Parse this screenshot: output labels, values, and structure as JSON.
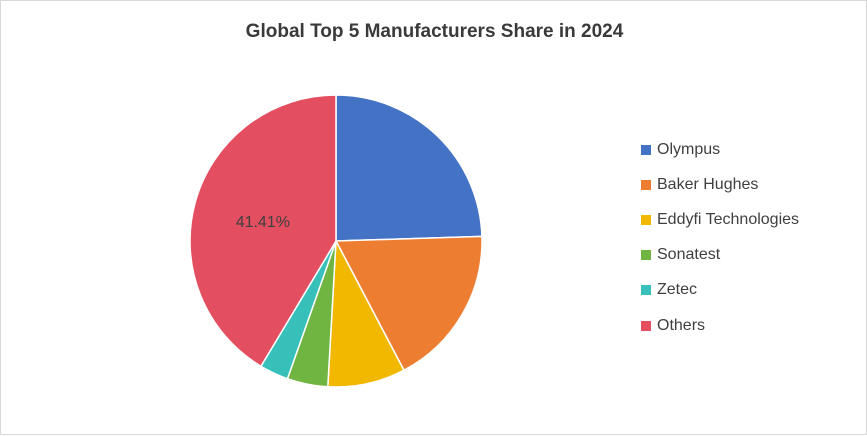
{
  "chart_data": {
    "type": "pie",
    "title": "Global Top 5 Manufacturers Share in 2024",
    "categories": [
      "Olympus",
      "Baker Hughes",
      "Eddyfi Technologies",
      "Sonatest",
      "Zetec",
      "Others"
    ],
    "values": [
      24.5,
      17.8,
      8.6,
      4.5,
      3.2,
      41.41
    ],
    "colors": [
      "#4472C4",
      "#ED7D31",
      "#F2B800",
      "#70B542",
      "#36C0B9",
      "#E34E60"
    ],
    "data_labels": [
      "",
      "",
      "",
      "",
      "",
      "41.41%"
    ],
    "legend_position": "right",
    "start_angle": "12 o'clock",
    "direction": "clockwise"
  }
}
